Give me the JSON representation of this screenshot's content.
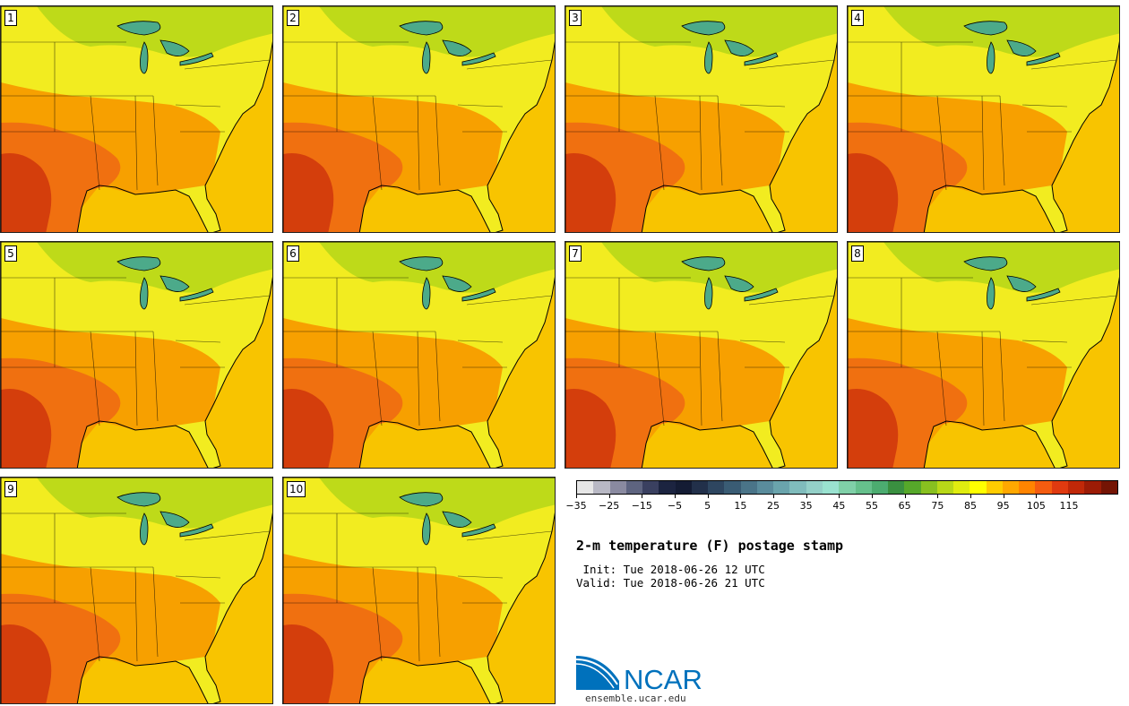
{
  "panels": [
    {
      "label": "1"
    },
    {
      "label": "2"
    },
    {
      "label": "3"
    },
    {
      "label": "4"
    },
    {
      "label": "5"
    },
    {
      "label": "6"
    },
    {
      "label": "7"
    },
    {
      "label": "8"
    },
    {
      "label": "9"
    },
    {
      "label": "10"
    }
  ],
  "title": "2-m temperature (F) postage stamp",
  "init_line": " Init: Tue 2018-06-26 12 UTC",
  "valid_line": "Valid: Tue 2018-06-26 21 UTC",
  "colorbar": {
    "colors": [
      "#e6e6e6",
      "#b8b8c4",
      "#8a8aa0",
      "#5e6480",
      "#3a4060",
      "#1c2440",
      "#141c34",
      "#22304a",
      "#2e4660",
      "#3a5c74",
      "#4a7488",
      "#5a8c9c",
      "#6aa4ac",
      "#80bcbc",
      "#94d0c8",
      "#9ae2d0",
      "#80d0a8",
      "#66c08c",
      "#4cac70",
      "#3a9040",
      "#56a82a",
      "#88c020",
      "#b8d818",
      "#e0ec10",
      "#ffff00",
      "#ffcc00",
      "#ffa800",
      "#ff8400",
      "#f45c10",
      "#e03a10",
      "#c02808",
      "#9c1c06",
      "#741404"
    ],
    "tick_labels": [
      "-35",
      "-25",
      "-15",
      "-5",
      "5",
      "15",
      "25",
      "35",
      "45",
      "55",
      "65",
      "75",
      "85",
      "95",
      "105",
      "115"
    ]
  },
  "logo": {
    "text": "NCAR",
    "brand_color": "#0071bc",
    "icon": "ncar-logo-icon"
  },
  "website": "ensemble.ucar.edu"
}
